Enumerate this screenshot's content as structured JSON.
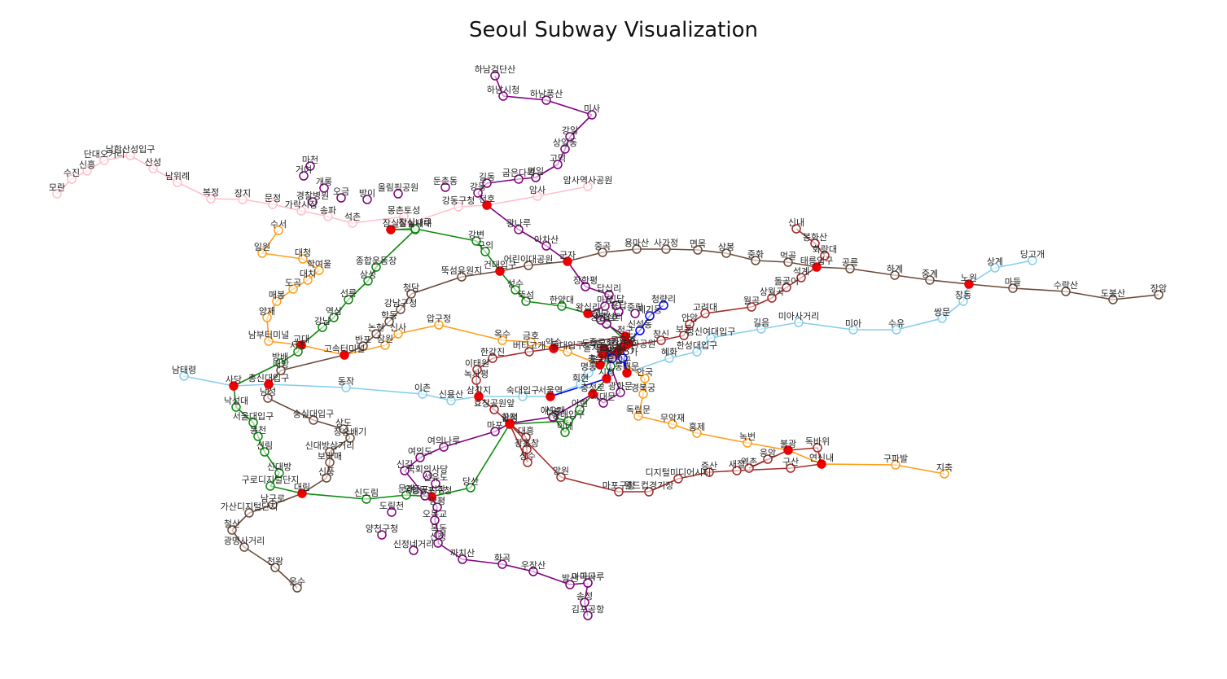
{
  "title": "Seoul Subway Visualization",
  "colors": {
    "line2": "#0b8a0b",
    "line3": "#ff9f1c",
    "line4": "#87ceeb",
    "line5": "#800080",
    "line6": "#a52a2a",
    "line7": "#6b4a3a",
    "line8": "#ffc0cb",
    "line1": "#0000ff",
    "transfer": "#ee0000"
  },
  "lines": [
    {
      "id": "line8",
      "color": "#ffc0cb",
      "stations": [
        "모란",
        "수진",
        "신흥",
        "단대오거리",
        "남한산성입구",
        "산성",
        "남위례",
        "복정",
        "장지",
        "문정",
        "가락시장",
        "송파",
        "석촌",
        "몽촌토성",
        "잠실",
        "강동구청",
        "천호",
        "암사",
        "암사역사공원"
      ]
    },
    {
      "id": "line3",
      "color": "#ff9f1c",
      "stations": [
        "수서",
        "일원",
        "대청",
        "학여울",
        "대치",
        "도곡",
        "매봉",
        "양재",
        "남부터미널",
        "교대",
        "고속터미널",
        "잠원",
        "신사",
        "압구정",
        "옥수",
        "금호",
        "약수",
        "동대입구",
        "충무로",
        "을지로3가",
        "종로3가",
        "안국",
        "경복궁",
        "독립문",
        "무악재",
        "홍제",
        "녹번",
        "불광",
        "연신내",
        "구파발",
        "지축"
      ]
    },
    {
      "id": "line2",
      "color": "#0b8a0b",
      "stations": [
        "잠실",
        "잠실새내",
        "종합운동장",
        "삼성",
        "선릉",
        "역삼",
        "강남",
        "교대",
        "서초",
        "방배",
        "사당",
        "낙성대",
        "서울대입구",
        "봉천",
        "신림",
        "신대방",
        "구로디지털단지",
        "대림",
        "신도림",
        "문래",
        "영등포구청",
        "당산",
        "합정",
        "홍대입구",
        "신촌",
        "이대",
        "아현",
        "충정로",
        "시청",
        "을지로입구",
        "을지로3가",
        "을지로4가",
        "동대문역사문화공원",
        "신당",
        "상왕십리",
        "왕십리",
        "한양대",
        "뚝섬",
        "성수",
        "건대입구",
        "구의",
        "강변",
        "잠실나루",
        "잠실"
      ]
    },
    {
      "id": "line4",
      "color": "#87ceeb",
      "stations": [
        "남태령",
        "사당",
        "총신대입구",
        "동작",
        "이촌",
        "신용산",
        "삼각지",
        "숙대입구",
        "서울역",
        "회현",
        "명동",
        "충무로",
        "동대문역사문화공원",
        "동대문",
        "혜화",
        "한성대입구",
        "성신여대입구",
        "길음",
        "미아사거리",
        "미아",
        "수유",
        "쌍문",
        "창동",
        "노원",
        "상계",
        "당고개"
      ]
    },
    {
      "id": "line5",
      "color": "#800080",
      "stations": [
        "김포공항",
        "송정",
        "마곡",
        "발산",
        "우장산",
        "화곡",
        "까치산",
        "신정",
        "목동",
        "오목교",
        "양평",
        "영등포구청",
        "영등포시장",
        "신길",
        "여의도",
        "여의나루",
        "마포",
        "공덕",
        "애오개",
        "충정로",
        "서대문",
        "광화문",
        "종로3가",
        "을지로4가",
        "동대문역사문화공원",
        "청구",
        "신금호",
        "행당",
        "왕십리",
        "마장",
        "답십리",
        "장한평",
        "군자",
        "아차산",
        "광나루",
        "천호",
        "강동",
        "길동",
        "굽은다리",
        "명일",
        "고덕",
        "상일동",
        "강일",
        "미사",
        "하남풍산",
        "하남시청",
        "하남검단산"
      ]
    },
    {
      "id": "line6",
      "color": "#a52a2a",
      "stations": [
        "응암",
        "역촌",
        "불광",
        "독바위",
        "연신내",
        "구산",
        "새절",
        "증산",
        "디지털미디어시티",
        "월드컵경기장",
        "마포구청",
        "망원",
        "합정",
        "상수",
        "광흥창",
        "대흥",
        "공덕",
        "효창공원앞",
        "삼각지",
        "녹사평",
        "이태원",
        "한강진",
        "버티고개",
        "약수",
        "청구",
        "신당",
        "동묘앞",
        "창신",
        "보문",
        "안암",
        "고려대",
        "월곡",
        "상월곡",
        "돌곶이",
        "석계",
        "태릉입구",
        "화랑대",
        "봉화산",
        "신내"
      ]
    },
    {
      "id": "line7",
      "color": "#6b4a3a",
      "stations": [
        "온수",
        "천왕",
        "광명사거리",
        "철산",
        "가산디지털단지",
        "남구로",
        "대림",
        "신풍",
        "보라매",
        "신대방삼거리",
        "장승배기",
        "상도",
        "숭실대입구",
        "남성",
        "총신대입구",
        "내방",
        "고속터미널",
        "반포",
        "논현",
        "학동",
        "강남구청",
        "청담",
        "뚝섬유원지",
        "건대입구",
        "어린이대공원",
        "군자",
        "중곡",
        "용마산",
        "사가정",
        "면목",
        "상봉",
        "중화",
        "먹골",
        "태릉입구",
        "공릉",
        "하계",
        "중계",
        "노원",
        "마들",
        "수락산",
        "도봉산",
        "장암"
      ]
    },
    {
      "id": "line1",
      "color": "#0000ff",
      "stations": [
        "서울역",
        "시청",
        "종각",
        "종로3가",
        "종로5가",
        "동대문",
        "동묘앞",
        "신설동",
        "제기동",
        "청량리"
      ]
    }
  ],
  "extra_labels": [
    "마천",
    "거여",
    "개롱",
    "오금",
    "방이",
    "올림픽공원",
    "둔촌동",
    "경찰병원",
    "가락시장",
    "강동구청",
    "상일동",
    "고덕",
    "명일",
    "굽은다리",
    "길동",
    "강동",
    "몽촌토성",
    "잠실나루",
    "용답",
    "신답",
    "성수",
    "중랑",
    "동묘앞",
    "종로5가",
    "혜화",
    "서대문",
    "경복궁",
    "마곡나루",
    "오목교",
    "목동",
    "신정네거리",
    "양천구청",
    "도림천",
    "당산",
    "선유도",
    "국회의사당",
    "여의나루",
    "애오개",
    "마포",
    "대흥",
    "광흥창",
    "상수",
    "상도",
    "보라매",
    "신풍",
    "남성"
  ]
}
